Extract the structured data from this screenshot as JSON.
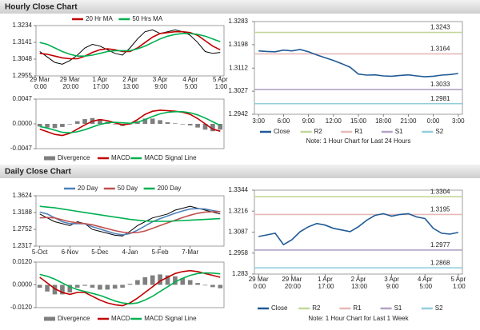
{
  "sections": [
    {
      "title": "Hourly Close Chart"
    },
    {
      "title": "Daily Close Chart"
    }
  ],
  "chart_data": [
    {
      "type": "line",
      "legend": "top",
      "categories": [
        "29 Mar 0:00",
        null,
        null,
        null,
        "29 Mar 20:00",
        null,
        null,
        null,
        "1 Apr 17:00",
        null,
        null,
        null,
        "2 Apr 13:00",
        null,
        null,
        null,
        "3 Apr 9:00",
        null,
        null,
        null,
        "4 Apr 5:00",
        null,
        null,
        null,
        "5 Apr 1:00"
      ],
      "series": [
        {
          "color": "#000000",
          "values": [
            1.309,
            1.306,
            1.303,
            1.302,
            1.304,
            1.307,
            1.311,
            1.313,
            1.312,
            1.31,
            1.308,
            1.307,
            1.311,
            1.316,
            1.32,
            1.321,
            1.319,
            1.32,
            1.321,
            1.32,
            1.318,
            1.314,
            1.309,
            1.308,
            1.3085
          ]
        },
        {
          "name": "20 Hr MA",
          "color": "#c00000",
          "values": [
            1.308,
            1.3075,
            1.3065,
            1.3055,
            1.305,
            1.305,
            1.3065,
            1.3085,
            1.31,
            1.3105,
            1.31,
            1.309,
            1.309,
            1.311,
            1.314,
            1.317,
            1.319,
            1.3195,
            1.32,
            1.32,
            1.3195,
            1.318,
            1.315,
            1.312,
            1.31
          ]
        },
        {
          "name": "50 Hrs MA",
          "color": "#00b050",
          "values": [
            1.314,
            1.313,
            1.311,
            1.309,
            1.3075,
            1.3065,
            1.3065,
            1.307,
            1.308,
            1.309,
            1.3095,
            1.3095,
            1.3095,
            1.3105,
            1.312,
            1.314,
            1.316,
            1.3175,
            1.3185,
            1.319,
            1.319,
            1.3185,
            1.3175,
            1.316,
            1.3145
          ]
        }
      ],
      "ylim": [
        1.2955,
        1.3234
      ],
      "yticks": [
        1.2955,
        1.3048,
        1.3141,
        1.3234
      ]
    },
    {
      "type": "combo",
      "legend": "bottom",
      "series": [
        {
          "name": "Divergence",
          "type": "bar",
          "color": "#7f7f7f",
          "values": [
            -0.0005,
            -0.0007,
            -0.0008,
            -0.0006,
            -0.0001,
            0.0005,
            0.0009,
            0.0011,
            0.0009,
            0.0004,
            -0.0001,
            -0.0004,
            -0.0001,
            0.0005,
            0.001,
            0.001,
            0.0007,
            0.0003,
            0.0001,
            -0.0001,
            -0.0003,
            -0.0007,
            -0.0011,
            -0.0014,
            -0.0011
          ]
        },
        {
          "name": "MACD",
          "type": "line",
          "color": "#c00000",
          "values": [
            -0.001,
            -0.0015,
            -0.002,
            -0.0022,
            -0.0018,
            -0.001,
            -0.0002,
            0.0005,
            0.0008,
            0.0006,
            0.0002,
            -0.0002,
            0.0,
            0.0008,
            0.0018,
            0.0024,
            0.0026,
            0.0025,
            0.0024,
            0.0022,
            0.0018,
            0.001,
            0.0,
            -0.001,
            -0.0014
          ]
        },
        {
          "name": "MACD Signal Line",
          "type": "line",
          "color": "#00b050",
          "values": [
            -0.0005,
            -0.0008,
            -0.0012,
            -0.0016,
            -0.0017,
            -0.0015,
            -0.0011,
            -0.0006,
            -0.0001,
            0.0002,
            0.0003,
            0.0002,
            0.0001,
            0.0003,
            0.0008,
            0.0014,
            0.0019,
            0.0022,
            0.0023,
            0.0023,
            0.0021,
            0.0017,
            0.0011,
            0.0004,
            -0.0003
          ]
        }
      ],
      "ylim": [
        -0.0047,
        0.0047
      ],
      "yticks": [
        -0.0047,
        {
          "value": 0,
          "label": "0.0000"
        },
        0.0047
      ]
    },
    {
      "type": "line",
      "legend": "bottom",
      "note": "Note: 1 Hour Chart for Last 24 Hours",
      "categories": [
        "3:00",
        null,
        null,
        "6:00",
        null,
        null,
        "9:00",
        null,
        null,
        "12:00",
        null,
        null,
        "15:00",
        null,
        null,
        "18:00",
        null,
        null,
        "21:00",
        null,
        null,
        "0:00",
        null,
        null,
        "3:00"
      ],
      "series": [
        {
          "name": "Close",
          "color": "#1f5a96",
          "values": [
            1.3175,
            1.3173,
            1.3172,
            1.3178,
            1.3175,
            1.318,
            1.3172,
            1.316,
            1.315,
            1.314,
            1.3128,
            1.3115,
            1.309,
            1.3086,
            1.3087,
            1.3083,
            1.3082,
            1.3085,
            1.3087,
            1.3083,
            1.308,
            1.3082,
            1.3086,
            1.3088,
            1.3092
          ]
        }
      ],
      "levels": [
        {
          "name": "R2",
          "color": "#c3d69b",
          "value": 1.3243
        },
        {
          "name": "R1",
          "color": "#e6b9b8",
          "value": 1.3164
        },
        {
          "name": "S1",
          "color": "#b3a2c7",
          "value": 1.3033
        },
        {
          "name": "S2",
          "color": "#93cddd",
          "value": 1.2981
        }
      ],
      "ylim": [
        1.2942,
        1.3283
      ],
      "yticks": [
        1.2942,
        1.3027,
        1.3112,
        1.3198,
        1.3283
      ]
    },
    {
      "type": "line",
      "legend": "top",
      "categories": [
        "5-Oct",
        null,
        null,
        null,
        "6-Nov",
        null,
        null,
        null,
        "5-Dec",
        null,
        null,
        null,
        "4-Jan",
        null,
        null,
        null,
        "5-Feb",
        null,
        null,
        null,
        "7-Mar",
        null,
        null,
        null,
        null
      ],
      "series": [
        {
          "color": "#000000",
          "values": [
            1.315,
            1.305,
            1.295,
            1.29,
            1.285,
            1.295,
            1.29,
            1.275,
            1.27,
            1.265,
            1.26,
            1.258,
            1.27,
            1.285,
            1.295,
            1.305,
            1.31,
            1.315,
            1.325,
            1.33,
            1.335,
            1.33,
            1.325,
            1.32,
            1.315
          ]
        },
        {
          "name": "20 Day",
          "color": "#4f81bd",
          "values": [
            1.32,
            1.315,
            1.305,
            1.295,
            1.29,
            1.29,
            1.29,
            1.282,
            1.276,
            1.27,
            1.264,
            1.261,
            1.264,
            1.273,
            1.284,
            1.295,
            1.303,
            1.31,
            1.317,
            1.323,
            1.328,
            1.329,
            1.328,
            1.324,
            1.321
          ]
        },
        {
          "name": "50 Day",
          "color": "#c0504d",
          "values": [
            1.305,
            1.306,
            1.305,
            1.3,
            1.295,
            1.292,
            1.29,
            1.287,
            1.282,
            1.277,
            1.272,
            1.268,
            1.266,
            1.267,
            1.271,
            1.278,
            1.285,
            1.292,
            1.299,
            1.306,
            1.312,
            1.317,
            1.32,
            1.321,
            1.321
          ]
        },
        {
          "name": "200 Day",
          "color": "#00b050",
          "values": [
            1.335,
            1.333,
            1.331,
            1.328,
            1.325,
            1.322,
            1.319,
            1.316,
            1.313,
            1.31,
            1.307,
            1.304,
            1.301,
            1.299,
            1.297,
            1.296,
            1.296,
            1.296,
            1.297,
            1.298,
            1.299,
            1.3,
            1.301,
            1.302,
            1.303
          ]
        }
      ],
      "ylim": [
        1.2317,
        1.3624
      ],
      "yticks": [
        1.2317,
        1.2752,
        1.3188,
        1.3624
      ]
    },
    {
      "type": "combo",
      "legend": "bottom",
      "series": [
        {
          "name": "Divergence",
          "type": "bar",
          "color": "#7f7f7f",
          "values": [
            -0.0015,
            -0.0035,
            -0.005,
            -0.005,
            -0.004,
            -0.0015,
            -0.0005,
            -0.0015,
            -0.0025,
            -0.0025,
            -0.002,
            -0.0015,
            0.0005,
            0.0025,
            0.004,
            0.005,
            0.0055,
            0.005,
            0.0045,
            0.0035,
            0.0025,
            0.001,
            -0.0003,
            -0.0012,
            -0.0018
          ]
        },
        {
          "name": "MACD",
          "type": "line",
          "color": "#c00000",
          "values": [
            0.004,
            0.001,
            -0.002,
            -0.004,
            -0.005,
            -0.004,
            -0.004,
            -0.006,
            -0.008,
            -0.0095,
            -0.0105,
            -0.011,
            -0.0095,
            -0.007,
            -0.004,
            -0.001,
            0.002,
            0.004,
            0.006,
            0.007,
            0.0075,
            0.007,
            0.006,
            0.005,
            0.004
          ]
        },
        {
          "name": "MACD Signal Line",
          "type": "line",
          "color": "#00b050",
          "values": [
            0.0055,
            0.0045,
            0.003,
            0.001,
            -0.001,
            -0.0025,
            -0.0035,
            -0.0045,
            -0.0055,
            -0.007,
            -0.0085,
            -0.0095,
            -0.01,
            -0.0095,
            -0.008,
            -0.006,
            -0.0035,
            -0.001,
            0.0015,
            0.0035,
            0.005,
            0.006,
            0.0063,
            0.0062,
            0.0058
          ]
        }
      ],
      "ylim": [
        -0.012,
        0.012
      ],
      "yticks": [
        {
          "value": -0.012,
          "label": "-0.0120"
        },
        {
          "value": 0,
          "label": "0.0000"
        },
        {
          "value": 0.012,
          "label": "0.0120"
        }
      ]
    },
    {
      "type": "line",
      "legend": "bottom",
      "note": "Note: 1 Hour Chart for Last 1 Week",
      "categories": [
        "29 Mar 0:00",
        null,
        null,
        null,
        "29 Mar 20:00",
        null,
        null,
        null,
        "1 Apr 17:00",
        null,
        null,
        null,
        "2 Apr 13:00",
        null,
        null,
        null,
        "3 Apr 9:00",
        null,
        null,
        null,
        "4 Apr 5:00",
        null,
        null,
        null,
        "5 Apr 1:00"
      ],
      "series": [
        {
          "name": "Close",
          "color": "#1f5a96",
          "values": [
            1.306,
            1.307,
            1.308,
            1.301,
            1.304,
            1.309,
            1.312,
            1.314,
            1.313,
            1.311,
            1.31,
            1.309,
            1.312,
            1.316,
            1.319,
            1.32,
            1.3185,
            1.3195,
            1.32,
            1.318,
            1.317,
            1.311,
            1.308,
            1.3075,
            1.3085
          ]
        }
      ],
      "levels": [
        {
          "name": "R2",
          "color": "#c3d69b",
          "value": 1.3304
        },
        {
          "name": "R1",
          "color": "#e6b9b8",
          "value": 1.3195
        },
        {
          "name": "S1",
          "color": "#b3a2c7",
          "value": 1.2977
        },
        {
          "name": "S2",
          "color": "#93cddd",
          "value": 1.2868
        }
      ],
      "ylim": [
        1.283,
        1.3344
      ],
      "yticks": [
        1.283,
        1.2958,
        1.3087,
        1.3216,
        1.3344
      ]
    }
  ]
}
